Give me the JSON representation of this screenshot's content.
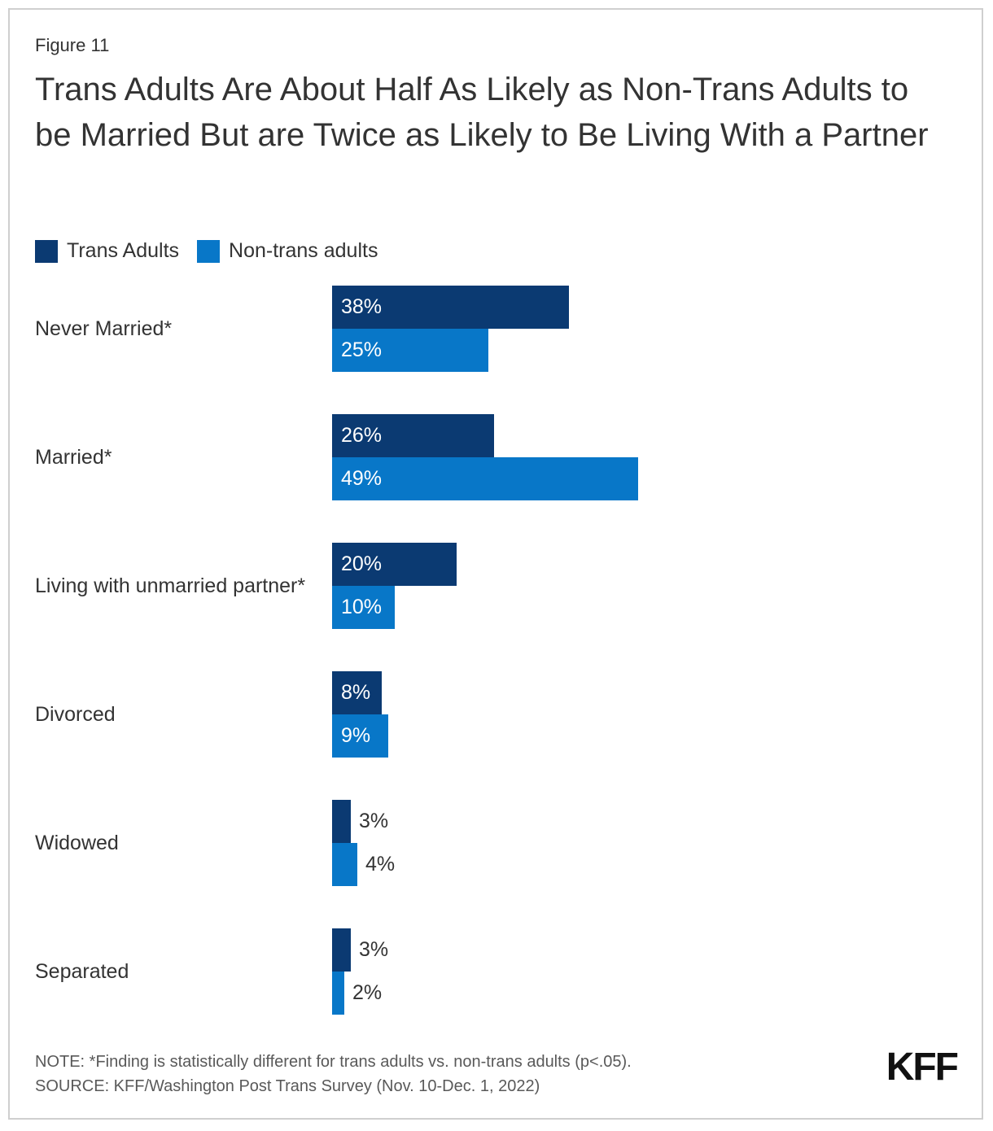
{
  "figure_label": "Figure 11",
  "title": "Trans Adults Are About Half As Likely as Non-Trans Adults to be Married But are Twice as Likely to Be Living With a Partner",
  "legend": {
    "items": [
      {
        "label": "Trans Adults",
        "color": "#0B3A72"
      },
      {
        "label": "Non-trans adults",
        "color": "#0877C8"
      }
    ]
  },
  "chart_data": {
    "type": "bar",
    "orientation": "horizontal",
    "categories": [
      "Never Married*",
      "Married*",
      "Living with unmarried partner*",
      "Divorced",
      "Widowed",
      "Separated"
    ],
    "series": [
      {
        "name": "Trans Adults",
        "color": "#0B3A72",
        "values": [
          38,
          26,
          20,
          8,
          3,
          3
        ]
      },
      {
        "name": "Non-trans adults",
        "color": "#0877C8",
        "values": [
          25,
          49,
          10,
          9,
          4,
          2
        ]
      }
    ],
    "value_suffix": "%",
    "xlim": [
      0,
      100
    ],
    "grid": false,
    "axes_shown": false,
    "value_labels": "shown on every bar; inside bar when value is large, outside right when small",
    "legend_position": "top-left"
  },
  "note": "NOTE: *Finding is statistically different for trans adults vs. non-trans adults (p<.05).",
  "source": "SOURCE: KFF/Washington Post Trans Survey (Nov. 10-Dec. 1, 2022)",
  "logo_text": "KFF",
  "colors": {
    "trans_adults": "#0B3A72",
    "non_trans_adults": "#0877C8",
    "text": "#333333",
    "muted_text": "#595959",
    "card_border": "#cfcfcf"
  }
}
